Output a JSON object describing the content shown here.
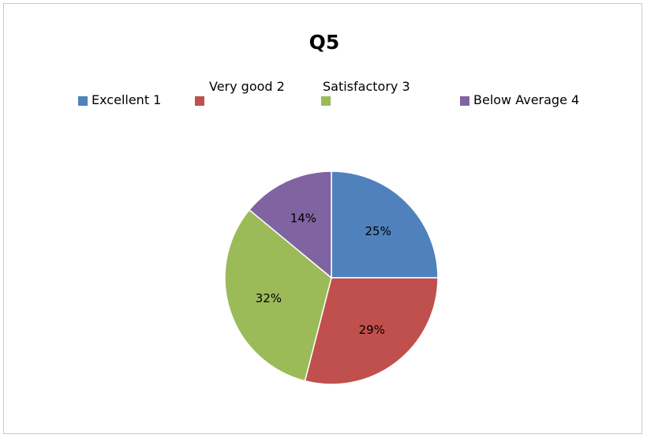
{
  "chart_data": {
    "type": "pie",
    "title": "Q5",
    "categories": [
      "Excellent 1",
      "Very good 2",
      "Satisfactory 3",
      "Below Average 4"
    ],
    "values": [
      25,
      29,
      32,
      14
    ],
    "data_labels": [
      "25%",
      "29%",
      "32%",
      "14%"
    ],
    "colors": [
      "#4f81bd",
      "#c0504d",
      "#9bbb59",
      "#8064a2"
    ],
    "legend_position": "top"
  }
}
